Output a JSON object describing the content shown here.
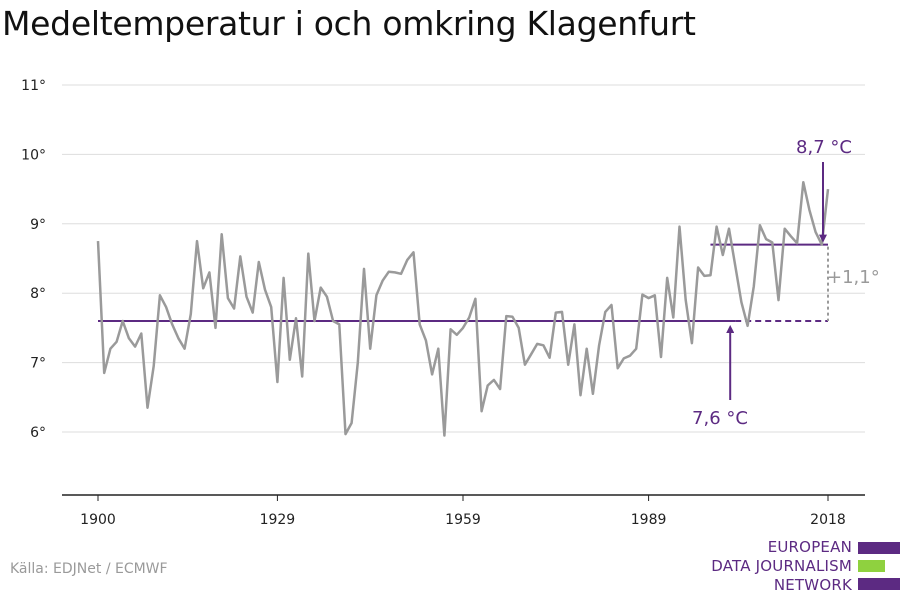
{
  "title": "Medeltemperatur i och omkring Klagenfurt",
  "source": "Källa: EDJNet / ECMWF",
  "logo": {
    "line1": "EUROPEAN",
    "line2": "DATA JOURNALISM",
    "line3": "NETWORK"
  },
  "colors": {
    "series": "#9a9a9a",
    "accent": "#5c2a82",
    "green": "#8fd13f",
    "grid": "#dddddd",
    "axis": "#222222",
    "diff": "#9a9a9a"
  },
  "chart_data": {
    "type": "line",
    "title": "Medeltemperatur i och omkring Klagenfurt",
    "xlabel": "",
    "ylabel": "",
    "xlim": [
      1900,
      2018
    ],
    "ylim": [
      5,
      11
    ],
    "grid": true,
    "x_ticks": [
      1900,
      1929,
      1959,
      1989,
      2018
    ],
    "x_tick_labels": [
      "1900",
      "1929",
      "1959",
      "1989",
      "2018"
    ],
    "y_ticks": [
      6,
      7,
      8,
      9,
      10,
      11
    ],
    "y_tick_labels": [
      "6°",
      "7°",
      "8°",
      "9°",
      "10°",
      "11°"
    ],
    "series": [
      {
        "start_year": 1900,
        "values": [
          8.75,
          6.85,
          7.2,
          7.3,
          7.6,
          7.35,
          7.23,
          7.42,
          6.35,
          6.95,
          7.97,
          7.8,
          7.55,
          7.35,
          7.2,
          7.7,
          8.75,
          8.07,
          8.3,
          7.5,
          8.85,
          7.93,
          7.78,
          8.53,
          7.95,
          7.72,
          8.45,
          8.05,
          7.8,
          6.72,
          8.22,
          7.04,
          7.64,
          6.8,
          8.57,
          7.6,
          8.08,
          7.95,
          7.6,
          7.55,
          5.97,
          6.13,
          7.0,
          8.35,
          7.2,
          7.97,
          8.18,
          8.31,
          8.3,
          8.28,
          8.48,
          8.59,
          7.55,
          7.32,
          6.83,
          7.2,
          5.95,
          7.48,
          7.4,
          7.5,
          7.65,
          7.92,
          6.3,
          6.67,
          6.75,
          6.62,
          7.67,
          7.66,
          7.5,
          6.97,
          7.12,
          7.27,
          7.25,
          7.07,
          7.72,
          7.73,
          6.97,
          7.55,
          6.53,
          7.2,
          6.55,
          7.25,
          7.73,
          7.83,
          6.92,
          7.06,
          7.1,
          7.2,
          7.98,
          7.93,
          7.97,
          7.08,
          8.22,
          7.65,
          8.96,
          7.9,
          7.28,
          8.37,
          8.25,
          8.26,
          8.96,
          8.55,
          8.93,
          8.4,
          7.87,
          7.53,
          8.1,
          8.98,
          8.78,
          8.73,
          7.9,
          8.93,
          8.82,
          8.72,
          9.6,
          9.2,
          8.88,
          8.7,
          9.5
        ]
      }
    ],
    "reference_line": {
      "value": 7.6,
      "x_from": 1900,
      "x_solid_to": 2003,
      "x_to": 2018,
      "label": "7,6 °C",
      "arrow_year": 2003
    },
    "recent_line": {
      "value": 8.7,
      "x_from": 1999,
      "x_to": 2018,
      "label": "8,7 °C"
    },
    "difference": {
      "label": "+1,1°",
      "year": 2018
    }
  }
}
